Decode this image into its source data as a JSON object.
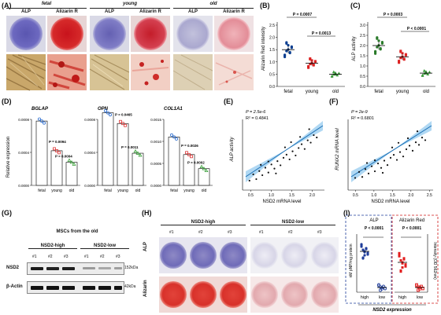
{
  "panel_labels": {
    "A": "(A)",
    "B": "(B)",
    "C": "(C)",
    "D": "(D)",
    "E": "(E)",
    "F": "(F)",
    "G": "(G)",
    "H": "(H)",
    "I": "(I)"
  },
  "panelA": {
    "groups": [
      "fetal",
      "young",
      "old"
    ],
    "stains": [
      "ALP",
      "Alizarin R"
    ],
    "colors": {
      "alp": "#6b66b8",
      "alizarin": "#c2161d",
      "alizarin_old": "#e48a93",
      "alp_old": "#b5b3cf"
    }
  },
  "panelB": {
    "ylabel": "Alizarin Red intensity",
    "categories": [
      "fetal",
      "young",
      "old"
    ],
    "p1": "P = 0.0007",
    "p2": "P = 0.0013",
    "color": "#0b3f91",
    "yticks": [
      "0.0",
      "0.5",
      "1.0",
      "1.5",
      "2.0",
      "2.5"
    ]
  },
  "panelC": {
    "ylabel": "ALP activity",
    "categories": [
      "fetal",
      "young",
      "old"
    ],
    "p1": "P = 0.0003",
    "p2": "P < 0.0001",
    "color": "#2a7a2a",
    "yticks": [
      "0.0",
      "0.5",
      "1.0",
      "1.5",
      "2.0",
      "2.5",
      "3.0"
    ]
  },
  "panelD": {
    "ylabel": "Relative expression",
    "genes": [
      "BGLAP",
      "OPN",
      "COL1A1"
    ],
    "categories": [
      "fetal",
      "young",
      "old"
    ],
    "pvals": [
      [
        "P = 0.0094",
        "P = 0.0004"
      ],
      [
        "P = 0.0465",
        "P = 0.0011"
      ],
      [
        "P = 0.0026",
        "P = 0.0002"
      ]
    ],
    "yticks": [
      [
        "0.0000",
        "0.0004",
        "0.0008"
      ],
      [
        "0.0000",
        "0.0004",
        "0.0008"
      ],
      [
        "0.0000",
        "0.0005",
        "0.0010",
        "0.0015"
      ]
    ]
  },
  "panelE": {
    "ylabel": "ALP activity",
    "xlabel": "NSD2 mRNA level",
    "p": "P = 2.5e-6",
    "r2": "R² = 0.4841",
    "xticks": [
      "0.5",
      "1.0",
      "1.5",
      "2.0"
    ]
  },
  "panelF": {
    "ylabel": "RUNX2 mRNA level",
    "xlabel": "NSD2 mRNA level",
    "p": "P = 2e-9",
    "r2": "R² = 0.6801",
    "xticks": [
      "0.5",
      "1.0",
      "1.5",
      "2.0",
      "2.5"
    ]
  },
  "panelG": {
    "title": "MSCs from the old",
    "high": "NSD2-high",
    "low": "NSD2-low",
    "lanes": [
      "#1",
      "#2",
      "#3",
      "#1",
      "#2",
      "#3"
    ],
    "rows": [
      "NSD2",
      "β-Actin"
    ],
    "mw": "152kDa",
    "mw2": "42kDa"
  },
  "panelH": {
    "high": "NSD2-high",
    "low": "NSD2-low",
    "lanes": [
      "#1",
      "#2",
      "#3"
    ],
    "rows": [
      "ALP",
      "Alizarin"
    ]
  },
  "panelI": {
    "alp_title": "ALP",
    "ar_title": "Alizarin Red",
    "p1": "P < 0.0001",
    "p2": "P < 0.0001",
    "ylabel_left": "nM pNP/mg protein",
    "ylabel_right": "Intensity (OD 562nm)",
    "categories": [
      "high",
      "low"
    ],
    "xlabel": "NSD2 expression"
  },
  "chart_data": [
    {
      "type": "scatter",
      "title": "",
      "ylabel": "Alizarin Red intensity",
      "categories": [
        "fetal",
        "young",
        "old"
      ],
      "series": [
        {
          "values": [
            1.5,
            0.95,
            0.5
          ]
        }
      ],
      "ylim": [
        0,
        2.5
      ]
    },
    {
      "type": "scatter",
      "title": "",
      "ylabel": "ALP activity",
      "categories": [
        "fetal",
        "young",
        "old"
      ],
      "series": [
        {
          "values": [
            2.0,
            1.45,
            0.65
          ]
        }
      ],
      "ylim": [
        0,
        3.0
      ]
    },
    {
      "type": "bar",
      "title": "BGLAP",
      "categories": [
        "fetal",
        "young",
        "old"
      ],
      "values": [
        0.00078,
        0.00042,
        0.00028
      ]
    },
    {
      "type": "bar",
      "title": "OPN",
      "categories": [
        "fetal",
        "young",
        "old"
      ],
      "values": [
        0.00088,
        0.00075,
        0.00039
      ]
    },
    {
      "type": "bar",
      "title": "COL1A1",
      "categories": [
        "fetal",
        "young",
        "old"
      ],
      "values": [
        0.0011,
        0.0007,
        0.00038
      ]
    }
  ]
}
